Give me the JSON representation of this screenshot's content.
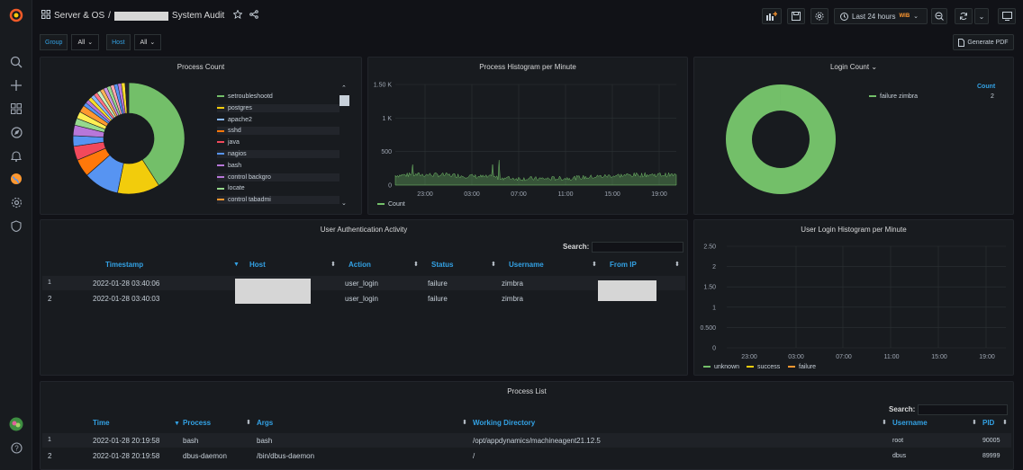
{
  "header": {
    "folder": "Server & OS",
    "separator": "/",
    "title": "System Audit",
    "time_range": "Last 24 hours",
    "tz": "WIB",
    "generate_pdf": "Generate PDF"
  },
  "variables": [
    {
      "label": "Group",
      "value": "All"
    },
    {
      "label": "Host",
      "value": "All"
    }
  ],
  "panels": {
    "process_count": {
      "title": "Process Count",
      "legend": [
        "setroubleshootd",
        "postgres",
        "apache2",
        "sshd",
        "java",
        "nagios",
        "bash",
        "control backgro",
        "locate",
        "control tabadmi"
      ]
    },
    "process_histogram": {
      "title": "Process Histogram per Minute",
      "y_ticks": [
        "1.50 K",
        "1 K",
        "500",
        "0"
      ],
      "x_ticks": [
        "23:00",
        "03:00",
        "07:00",
        "11:00",
        "15:00",
        "19:00"
      ],
      "legend": "Count"
    },
    "login_count": {
      "title": "Login Count",
      "legend": "failure zimbra",
      "col_header": "Count",
      "value": "2"
    },
    "user_auth": {
      "title": "User Authentication Activity",
      "search_label": "Search:",
      "columns": [
        "Timestamp",
        "Host",
        "Action",
        "Status",
        "Username",
        "From IP"
      ],
      "rows": [
        {
          "n": "1",
          "timestamp": "2022-01-28 03:40:06",
          "action": "user_login",
          "status": "failure",
          "username": "zimbra"
        },
        {
          "n": "2",
          "timestamp": "2022-01-28 03:40:03",
          "action": "user_login",
          "status": "failure",
          "username": "zimbra"
        }
      ]
    },
    "login_histogram": {
      "title": "User Login Histogram per Minute",
      "y_ticks": [
        "2.50",
        "2",
        "1.50",
        "1",
        "0.500",
        "0"
      ],
      "x_ticks": [
        "23:00",
        "03:00",
        "07:00",
        "11:00",
        "15:00",
        "19:00"
      ],
      "legend": [
        "unknown",
        "success",
        "failure"
      ]
    },
    "process_list": {
      "title": "Process List",
      "search_label": "Search:",
      "columns": [
        "Time",
        "Process",
        "Args",
        "Working Directory",
        "Username",
        "PID"
      ],
      "rows": [
        {
          "n": "1",
          "time": "2022-01-28 20:19:58",
          "process": "bash",
          "args": "bash",
          "wd": "/opt/appdynamics/machineagent21.12.5",
          "user": "root",
          "pid": "90005"
        },
        {
          "n": "2",
          "time": "2022-01-28 20:19:58",
          "process": "dbus-daemon",
          "args": "/bin/dbus-daemon",
          "wd": "/",
          "user": "dbus",
          "pid": "89999"
        }
      ]
    }
  },
  "colors": {
    "green": "#73bf69",
    "yellow": "#f2cc0c",
    "blue": "#8ab8ff",
    "orange": "#ff9830",
    "red": "#f2495c",
    "purple": "#b877d9",
    "link": "#33a2e5"
  },
  "chart_data": [
    {
      "type": "pie",
      "title": "Process Count",
      "categories": [
        "setroubleshootd",
        "postgres",
        "apache2",
        "sshd",
        "java",
        "nagios",
        "bash",
        "control backgro",
        "locate",
        "control tabadmi"
      ],
      "values": [
        40,
        12,
        10,
        5,
        4,
        3,
        3,
        2,
        2,
        2
      ],
      "colors": [
        "#73bf69",
        "#f2cc0c",
        "#5794f2",
        "#ff780a",
        "#f2495c",
        "#5794f2",
        "#b877d9",
        "#96d98d",
        "#ffee52",
        "#ff9830"
      ]
    },
    {
      "type": "area",
      "title": "Process Histogram per Minute",
      "x": [
        "23:00",
        "03:00",
        "07:00",
        "11:00",
        "15:00",
        "19:00"
      ],
      "series": [
        {
          "name": "Count",
          "values": [
            80,
            90,
            110,
            120,
            100,
            95
          ]
        }
      ],
      "ylim": [
        0,
        1500
      ]
    },
    {
      "type": "pie",
      "title": "Login Count",
      "categories": [
        "failure zimbra"
      ],
      "values": [
        2
      ]
    }
  ]
}
